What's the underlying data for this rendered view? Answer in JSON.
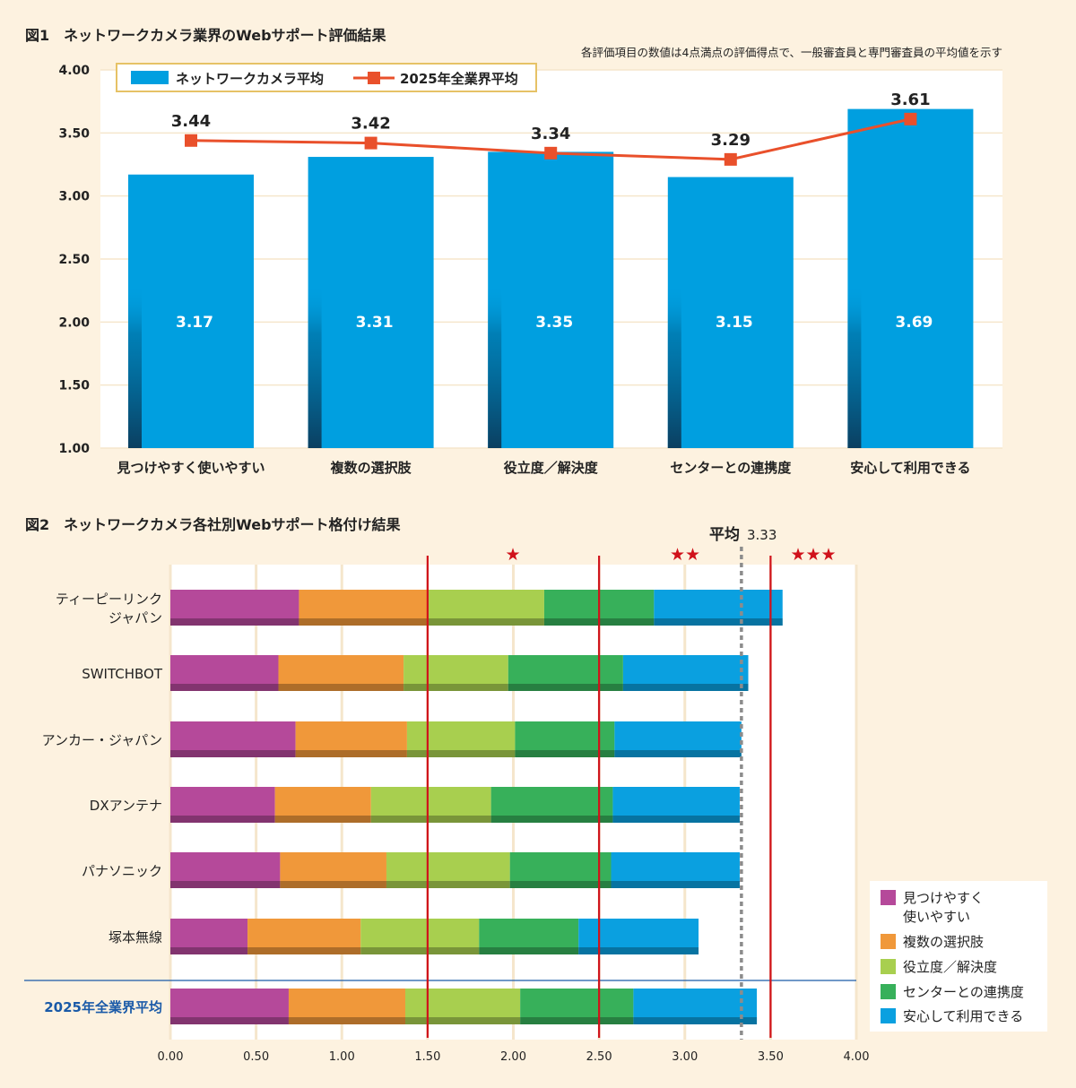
{
  "colors": {
    "background": "#fdf2e0",
    "bar": "#009fe0",
    "line": "#e9502b",
    "threshold": "#d0121b",
    "avg_line": "#8c8c8c",
    "industry_label": "#1a5aa8",
    "segments": [
      "#b5499a",
      "#f0983a",
      "#a8cf4f",
      "#37b05a",
      "#0aa0e0"
    ]
  },
  "chart_data": [
    {
      "type": "bar",
      "title": "図1　ネットワークカメラ業界のWebサポート評価結果",
      "note": "各評価項目の数値は4点満点の評価得点で、一般審査員と専門審査員の平均値を示す",
      "categories": [
        "見つけやすく使いやすい",
        "複数の選択肢",
        "役立度／解決度",
        "センターとの連携度",
        "安心して利用できる"
      ],
      "ylim": [
        1.0,
        4.0
      ],
      "yticks": [
        "1.00",
        "1.50",
        "2.00",
        "2.50",
        "3.00",
        "3.50",
        "4.00"
      ],
      "grid": true,
      "legend_position": "top-left",
      "series": [
        {
          "name": "ネットワークカメラ平均",
          "type": "bar",
          "values": [
            3.17,
            3.31,
            3.35,
            3.15,
            3.69
          ]
        },
        {
          "name": "2025年全業界平均",
          "type": "line",
          "values": [
            3.44,
            3.42,
            3.34,
            3.29,
            3.61
          ]
        }
      ]
    },
    {
      "type": "stacked-bar-horizontal",
      "title": "図2　ネットワークカメラ各社別Webサポート格付け結果",
      "xlim": [
        0,
        4.0
      ],
      "xticks": [
        "0.00",
        "0.50",
        "1.00",
        "1.50",
        "2.00",
        "2.50",
        "3.00",
        "3.50",
        "4.00"
      ],
      "legend_position": "bottom-right",
      "average": {
        "label": "平均",
        "value": "3.33"
      },
      "thresholds": [
        {
          "value": 1.5,
          "rating": "★"
        },
        {
          "value": 2.5,
          "rating": "★★"
        },
        {
          "value": 3.5,
          "rating": "★★★"
        }
      ],
      "series_names": [
        "見つけやすく使いやすい",
        "複数の選択肢",
        "役立度／解決度",
        "センターとの連携度",
        "安心して利用できる"
      ],
      "legend_labels": [
        "見つけやすく\n使いやすい",
        "複数の選択肢",
        "役立度／解決度",
        "センターとの連携度",
        "安心して利用できる"
      ],
      "rows": [
        {
          "label": "ティーピーリンク\nジャパン",
          "values": [
            0.75,
            0.75,
            0.68,
            0.64,
            0.75
          ]
        },
        {
          "label": "SWITCHBOT",
          "values": [
            0.63,
            0.73,
            0.61,
            0.67,
            0.73
          ]
        },
        {
          "label": "アンカー・ジャパン",
          "values": [
            0.73,
            0.65,
            0.63,
            0.58,
            0.74
          ]
        },
        {
          "label": "DXアンテナ",
          "values": [
            0.61,
            0.56,
            0.7,
            0.71,
            0.74
          ]
        },
        {
          "label": "パナソニック",
          "values": [
            0.64,
            0.62,
            0.72,
            0.59,
            0.75
          ]
        },
        {
          "label": "塚本無線",
          "values": [
            0.45,
            0.66,
            0.69,
            0.58,
            0.7
          ]
        },
        {
          "label": "2025年全業界平均",
          "values": [
            0.69,
            0.68,
            0.67,
            0.66,
            0.72
          ],
          "industry": true
        }
      ]
    }
  ]
}
